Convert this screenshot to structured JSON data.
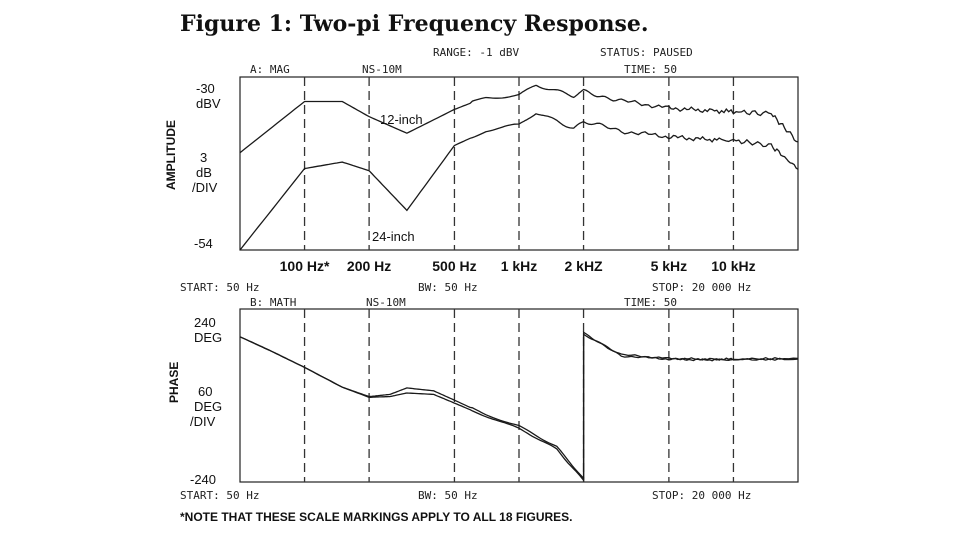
{
  "figure_title": "Figure 1: Two-pi Frequency Response.",
  "header": {
    "range": "RANGE:  -1 dBV",
    "status": "STATUS:  PAUSED",
    "time": "TIME: 50"
  },
  "top_panel": {
    "label": "A: MAG",
    "source": "NS-10M",
    "axis_name": "AMPLITUDE",
    "y_top": "-30",
    "y_top_unit": "dBV",
    "y_mid": "3",
    "y_mid_unit1": "dB",
    "y_mid_unit2": "/DIV",
    "y_bottom": "-54",
    "trace_label_12": "12-inch",
    "trace_label_24": "24-inch"
  },
  "freq_labels": [
    "100 Hz*",
    "200 Hz",
    "500 Hz",
    "1 kHz",
    "2 kHZ",
    "5 kHz",
    "10 kHz"
  ],
  "mid_axis": {
    "start": "START:  50 Hz",
    "bw": "BW:  50 Hz",
    "stop": "STOP:  20 000 Hz"
  },
  "bottom_panel": {
    "label": "B: MATH",
    "source": "NS-10M",
    "time": "TIME: 50",
    "axis_name": "PHASE",
    "y_top": "240",
    "y_top_unit": "DEG",
    "y_mid": "60",
    "y_mid_unit1": "DEG",
    "y_mid_unit2": "/DIV",
    "y_bottom": "-240"
  },
  "bottom_axis": {
    "start": "START:  50 Hz",
    "bw": "BW:  50 Hz",
    "stop": "STOP:  20 000 Hz"
  },
  "footnote": "*NOTE THAT THESE SCALE MARKINGS APPLY TO ALL 18 FIGURES.",
  "chart_data": [
    {
      "type": "line",
      "title": "",
      "xlabel": "",
      "ylabel": "AMPLITUDE",
      "x_scale": "log",
      "xlim": [
        50,
        20000
      ],
      "ylim": [
        -54,
        -30
      ],
      "x_ticks": [
        100,
        200,
        500,
        1000,
        2000,
        5000,
        10000
      ],
      "grid": "vertical dashed",
      "series": [
        {
          "name": "12-inch",
          "x": [
            50,
            100,
            150,
            200,
            300,
            500,
            700,
            1000,
            1200,
            1500,
            1800,
            2000,
            3000,
            5000,
            7000,
            10000,
            15000,
            20000
          ],
          "y": [
            -40.5,
            -33.4,
            -33.4,
            -35.5,
            -37.8,
            -34.5,
            -32.8,
            -32.4,
            -31.0,
            -32.0,
            -32.8,
            -32.0,
            -33.3,
            -34.3,
            -34.6,
            -34.8,
            -35.1,
            -39.0
          ]
        },
        {
          "name": "24-inch",
          "x": [
            50,
            100,
            150,
            200,
            300,
            500,
            700,
            1000,
            1200,
            1500,
            1800,
            2000,
            3000,
            5000,
            7000,
            10000,
            15000,
            20000
          ],
          "y": [
            -54.0,
            -42.7,
            -41.8,
            -43.0,
            -48.5,
            -39.5,
            -37.5,
            -36.8,
            -35.0,
            -36.0,
            -37.0,
            -36.2,
            -37.5,
            -38.3,
            -38.6,
            -38.8,
            -39.5,
            -42.8
          ]
        }
      ]
    },
    {
      "type": "line",
      "title": "",
      "xlabel": "",
      "ylabel": "PHASE",
      "x_scale": "log",
      "xlim": [
        50,
        20000
      ],
      "ylim": [
        -240,
        240
      ],
      "grid": "vertical dashed",
      "series": [
        {
          "name": "12-inch",
          "x": [
            50,
            70,
            100,
            150,
            200,
            250,
            300,
            400,
            500,
            700,
            1000,
            1500,
            2000,
            2001,
            3000,
            5000,
            7000,
            10000,
            20000
          ],
          "y": [
            163,
            123,
            78,
            23,
            -3,
            3,
            21,
            13,
            -13,
            -53,
            -83,
            -143,
            -232,
            173,
            113,
            103,
            101,
            101,
            103
          ]
        },
        {
          "name": "24-inch",
          "x": [
            50,
            70,
            100,
            150,
            200,
            250,
            300,
            400,
            500,
            700,
            1000,
            1500,
            2000,
            2001,
            3000,
            5000,
            7000,
            10000,
            20000
          ],
          "y": [
            163,
            123,
            78,
            23,
            -5,
            -3,
            7,
            3,
            -21,
            -58,
            -93,
            -148,
            -235,
            170,
            110,
            101,
            99,
            99,
            101
          ]
        }
      ]
    }
  ]
}
